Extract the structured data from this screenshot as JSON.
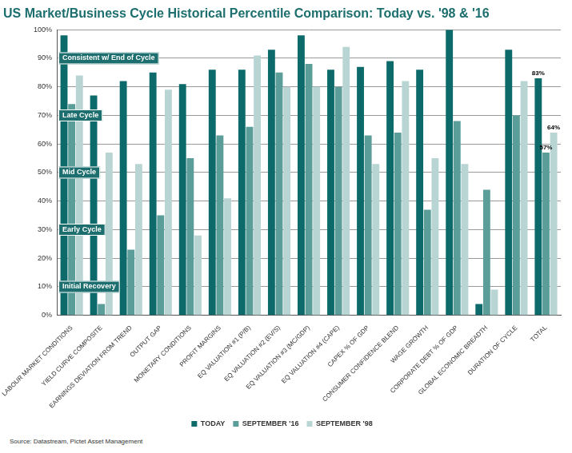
{
  "chart_data": {
    "type": "bar",
    "title": "US Market/Business Cycle Historical Percentile Comparison: Today vs. '98 & '16",
    "source": "Source: Datastream, Pictet Asset Management",
    "categories": [
      "LABOUR MARKET CONDITIONS",
      "YIELD CURVE COMPOSITE",
      "EARNINGS DEVIATION FROM TREND",
      "OUTPUT GAP",
      "MONETARY CONDITIONS",
      "PROFIT MARGINS",
      "EQ VALUATION #1 (P/B)",
      "EQ VALUATION #2 (EV/S)",
      "EQ VALUATION #3 (MC/GDP)",
      "EQ VALUATION #4 (CAPE)",
      "CAPEX % OF GDP",
      "CONSUMER CONFIDENCE BLEND",
      "WAGE GROWTH",
      "CORPORATE DEBT % OF GDP",
      "GLOBAL ECONOMIC BREADTH",
      "DURATION OF CYCLE",
      "TOTAL"
    ],
    "series": [
      {
        "name": "TODAY",
        "color": "#0d6a6a",
        "values": [
          98,
          77,
          82,
          85,
          81,
          86,
          86,
          93,
          98,
          86,
          87,
          89,
          86,
          100,
          4,
          93,
          83
        ],
        "value_labels": [
          null,
          null,
          null,
          null,
          null,
          null,
          null,
          null,
          null,
          null,
          null,
          null,
          null,
          null,
          null,
          null,
          "83%"
        ]
      },
      {
        "name": "SEPTEMBER '16",
        "color": "#5b9d99",
        "values": [
          74,
          4,
          23,
          35,
          55,
          63,
          66,
          85,
          88,
          80,
          63,
          64,
          37,
          68,
          44,
          70,
          57
        ],
        "value_labels": [
          null,
          null,
          null,
          null,
          null,
          null,
          null,
          null,
          null,
          null,
          null,
          null,
          null,
          null,
          null,
          null,
          "57%"
        ]
      },
      {
        "name": "SEPTEMBER '98",
        "color": "#b8d5d4",
        "values": [
          84,
          57,
          53,
          79,
          28,
          41,
          91,
          80,
          80,
          94,
          53,
          82,
          55,
          53,
          9,
          82,
          64
        ],
        "value_labels": [
          null,
          null,
          null,
          null,
          null,
          null,
          null,
          null,
          null,
          null,
          null,
          null,
          null,
          null,
          null,
          null,
          "64%"
        ]
      }
    ],
    "annotations": [
      {
        "text": "Consistent w/ End of Cycle",
        "y": 90
      },
      {
        "text": "Late Cycle",
        "y": 70
      },
      {
        "text": "Mid Cycle",
        "y": 50
      },
      {
        "text": "Early Cycle",
        "y": 30
      },
      {
        "text": "Initial Recovery",
        "y": 10
      }
    ],
    "ylim": [
      0,
      100
    ],
    "yticks": [
      {
        "value": 0,
        "label": "0%"
      },
      {
        "value": 10,
        "label": "10%"
      },
      {
        "value": 20,
        "label": "20%"
      },
      {
        "value": 30,
        "label": "30%"
      },
      {
        "value": 40,
        "label": "40%"
      },
      {
        "value": 50,
        "label": "50%"
      },
      {
        "value": 60,
        "label": "60%"
      },
      {
        "value": 70,
        "label": "70%"
      },
      {
        "value": 80,
        "label": "80%"
      },
      {
        "value": 90,
        "label": "90%"
      },
      {
        "value": 100,
        "label": "100%"
      }
    ],
    "grid": true,
    "legend": "bottom",
    "data_labels": true
  }
}
